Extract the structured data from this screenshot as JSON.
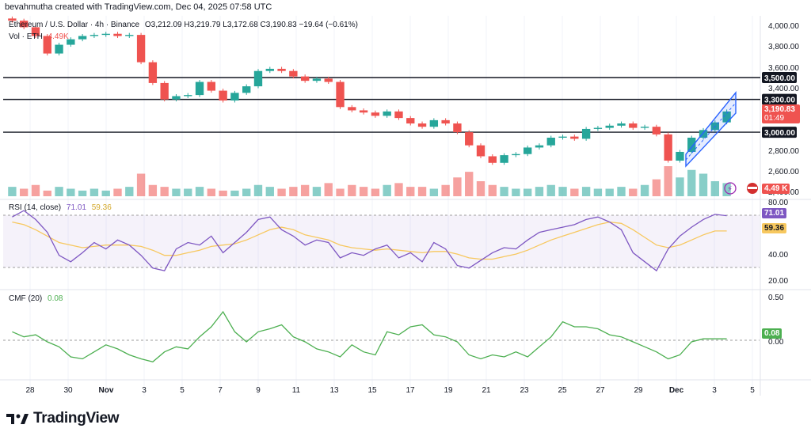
{
  "header": {
    "text": "bevahmutha created with TradingView.com, Dec 04, 2025 07:58 UTC"
  },
  "price_legend": {
    "symbol": "Ethereum / U.S. Dollar · 4h · Binance",
    "ohlc": "O3,212.09  H3,219.79  L3,172.68  C3,190.83  −19.64 (−0.61%)",
    "volume_label": "Vol · ETH",
    "volume_value": "4.49K"
  },
  "rsi_legend": {
    "label": "RSI (14, close)",
    "value1": "71.01",
    "value2": "59.36"
  },
  "cmf_legend": {
    "label": "CMF (20)",
    "value": "0.08"
  },
  "price_badge": {
    "price": "3,190.83",
    "countdown": "01:49"
  },
  "volume_badge": "4.49 K",
  "footer": {
    "brand": "TradingView"
  },
  "colors": {
    "up": "#26a69a",
    "down": "#ef5350",
    "rsi": "#7e57c2",
    "rsi_ma": "#f7c85f",
    "cmf": "#4caf50",
    "channel": "#2962ff"
  },
  "chart_data": {
    "type": "candlestick",
    "x_tick_labels": [
      "28",
      "30",
      "Nov",
      "3",
      "5",
      "7",
      "9",
      "11",
      "13",
      "15",
      "17",
      "19",
      "21",
      "23",
      "25",
      "27",
      "29",
      "Dec",
      "3",
      "5"
    ],
    "price_axis_ticks": [
      "4,000.00",
      "3,800.00",
      "3,600.00",
      "3,400.00",
      "2,800.00",
      "2,600.00",
      "2,400.00"
    ],
    "price_range": [
      2400,
      4050
    ],
    "horizontal_levels": [
      {
        "price": 3500,
        "label": "3,500.00"
      },
      {
        "price": 3300,
        "label": "3,300.00"
      },
      {
        "price": 3000,
        "label": "3,000.00"
      }
    ],
    "close_series": [
      4020,
      3960,
      3880,
      3720,
      3800,
      3850,
      3880,
      3890,
      3900,
      3880,
      3890,
      3640,
      3450,
      3300,
      3330,
      3340,
      3460,
      3380,
      3290,
      3360,
      3420,
      3560,
      3580,
      3560,
      3510,
      3470,
      3490,
      3460,
      3230,
      3200,
      3180,
      3150,
      3190,
      3130,
      3080,
      3050,
      3110,
      3080,
      3000,
      2880,
      2780,
      2720,
      2790,
      2800,
      2860,
      2880,
      2950,
      2960,
      2940,
      3030,
      3040,
      3060,
      3080,
      3040,
      3050,
      2980,
      2740,
      2820,
      2950,
      3020,
      3090,
      3190
    ],
    "volume_series": [
      5,
      4,
      6,
      3,
      5,
      4,
      3,
      4,
      3,
      4,
      5,
      12,
      6,
      5,
      4,
      4,
      5,
      4,
      3,
      3,
      4,
      6,
      5,
      4,
      5,
      6,
      5,
      7,
      4,
      6,
      5,
      4,
      6,
      7,
      5,
      5,
      4,
      6,
      10,
      13,
      8,
      6,
      5,
      4,
      4,
      5,
      6,
      5,
      4,
      5,
      4,
      4,
      5,
      4,
      6,
      9,
      16,
      10,
      14,
      12,
      8,
      7
    ],
    "rsi": {
      "range": [
        20,
        80
      ],
      "ticks": [
        "80.00",
        "40.00",
        "20.00"
      ],
      "band": [
        30,
        70
      ],
      "series": [
        70,
        75,
        68,
        58,
        40,
        35,
        42,
        50,
        45,
        52,
        48,
        40,
        30,
        28,
        45,
        50,
        48,
        55,
        42,
        50,
        58,
        68,
        70,
        60,
        55,
        48,
        52,
        50,
        38,
        42,
        40,
        45,
        48,
        38,
        42,
        35,
        50,
        45,
        32,
        30,
        36,
        42,
        46,
        45,
        52,
        58,
        60,
        62,
        64,
        68,
        70,
        66,
        60,
        42,
        35,
        28,
        45,
        55,
        62,
        68,
        72,
        71
      ],
      "ma_series": [
        66,
        64,
        60,
        55,
        50,
        48,
        46,
        47,
        48,
        48,
        48,
        47,
        44,
        40,
        40,
        42,
        44,
        47,
        48,
        49,
        52,
        56,
        60,
        62,
        60,
        56,
        54,
        52,
        48,
        46,
        45,
        44,
        45,
        44,
        43,
        42,
        43,
        43,
        41,
        38,
        37,
        37,
        39,
        41,
        44,
        48,
        52,
        55,
        58,
        61,
        64,
        66,
        65,
        60,
        54,
        48,
        46,
        48,
        52,
        56,
        59,
        59
      ]
    },
    "cmf": {
      "range": [
        -0.25,
        0.5
      ],
      "ticks": [
        "0.50",
        "0.00"
      ],
      "series": [
        0.15,
        0.1,
        0.12,
        0.05,
        0.0,
        -0.1,
        -0.12,
        -0.05,
        0.02,
        -0.02,
        -0.08,
        -0.12,
        -0.15,
        -0.05,
        0.0,
        -0.02,
        0.1,
        0.2,
        0.35,
        0.15,
        0.05,
        0.15,
        0.18,
        0.22,
        0.1,
        0.05,
        -0.02,
        -0.05,
        -0.1,
        0.02,
        -0.05,
        -0.08,
        0.15,
        0.12,
        0.2,
        0.22,
        0.12,
        0.1,
        0.05,
        -0.08,
        -0.12,
        -0.08,
        -0.1,
        -0.05,
        -0.1,
        0.0,
        0.1,
        0.25,
        0.2,
        0.2,
        0.18,
        0.12,
        0.1,
        0.05,
        0.0,
        -0.05,
        -0.12,
        -0.08,
        0.05,
        0.08,
        0.08,
        0.08
      ]
    }
  }
}
